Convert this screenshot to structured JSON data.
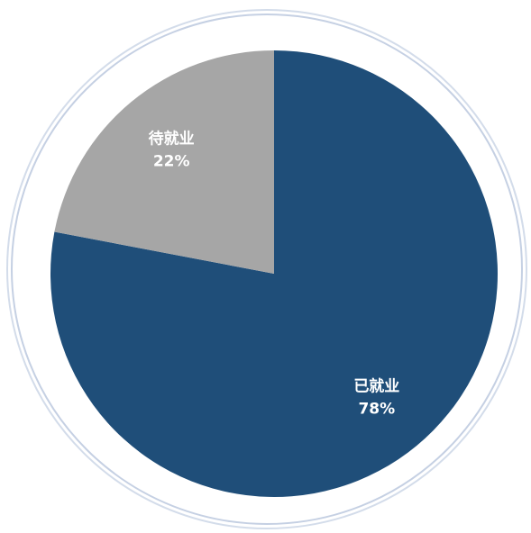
{
  "chart_data": {
    "type": "pie",
    "categories": [
      "已就业",
      "待就业"
    ],
    "values": [
      78,
      22
    ],
    "value_labels": [
      "78%",
      "22%"
    ],
    "colors": [
      "#1f4e79",
      "#a6a6a6"
    ]
  }
}
